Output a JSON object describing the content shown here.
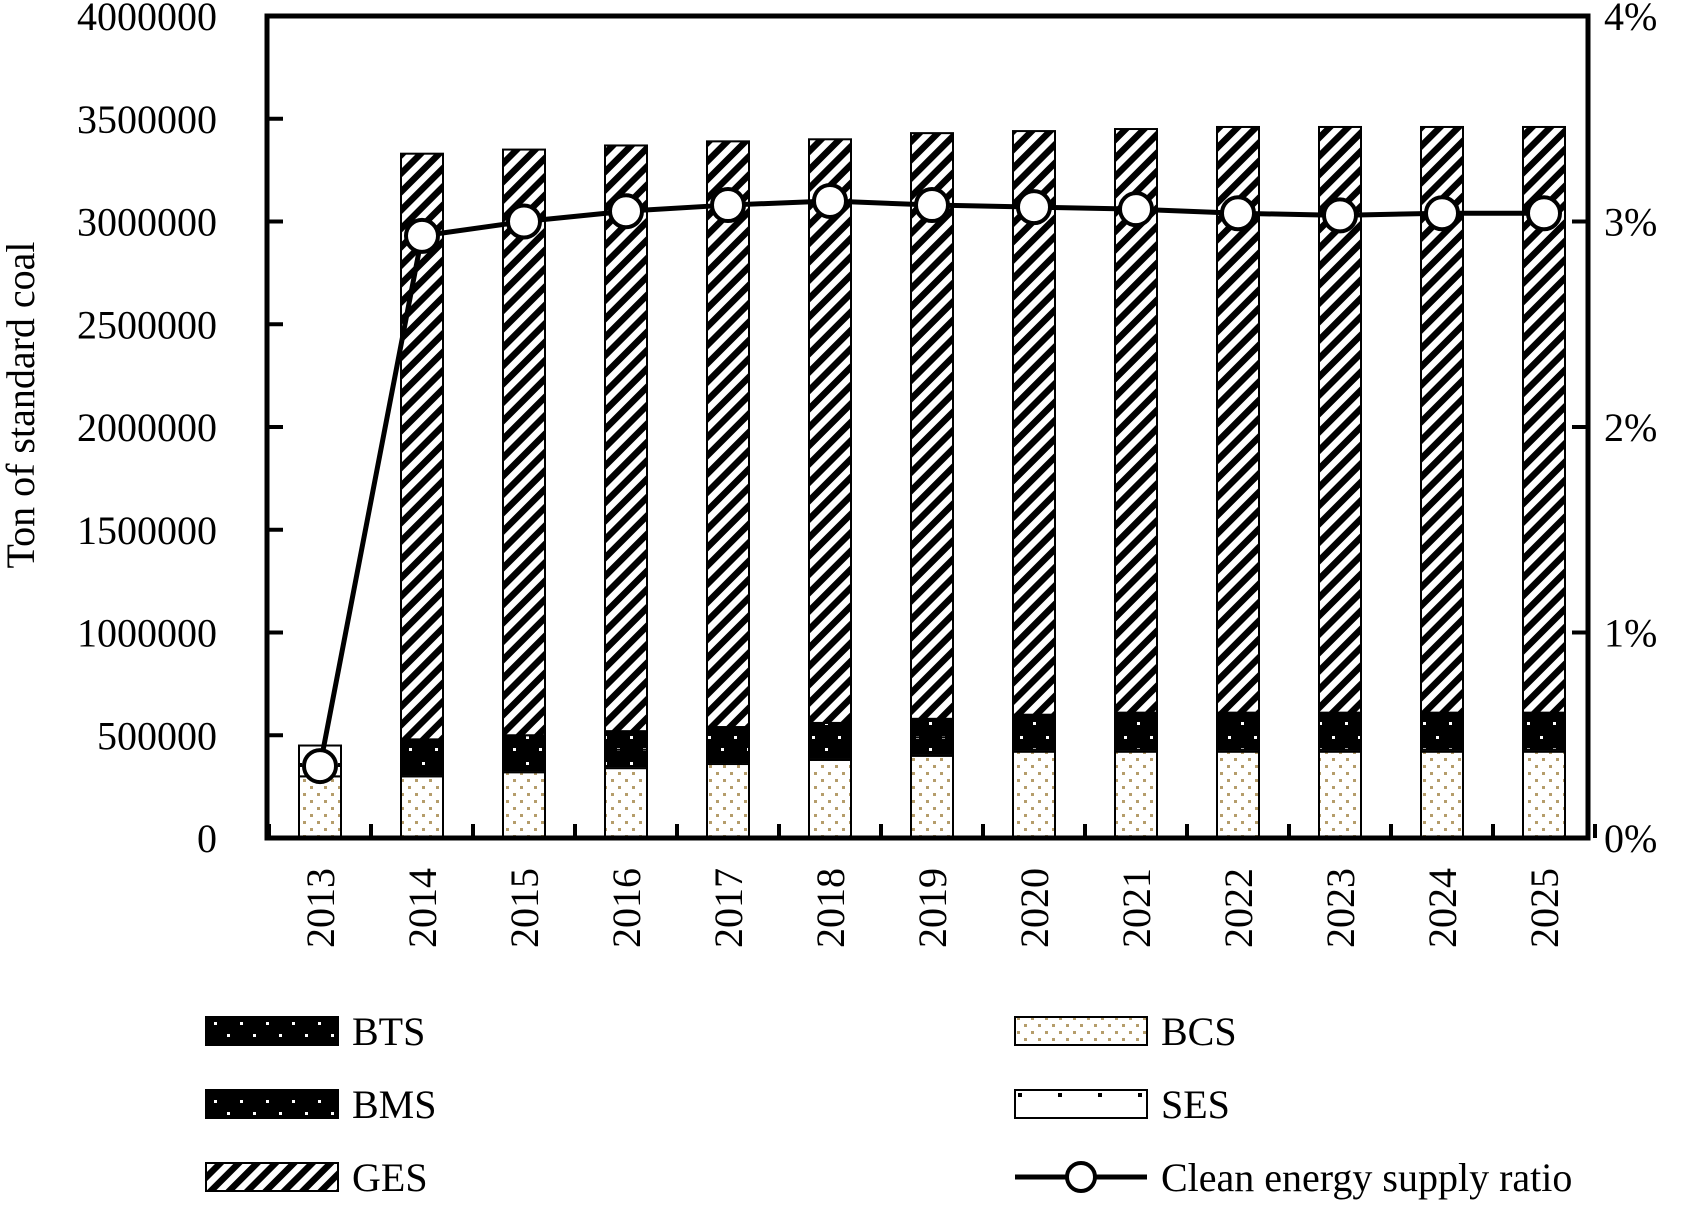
{
  "chart_data": {
    "type": "bar",
    "stacked": true,
    "title": "",
    "xlabel": "",
    "ylabel": "Ton of standard coal",
    "ylim": [
      0,
      4000000
    ],
    "y_ticks": [
      "0",
      "500000",
      "1000000",
      "1500000",
      "2000000",
      "2500000",
      "3000000",
      "3500000",
      "4000000"
    ],
    "y2lim": [
      0,
      4
    ],
    "y2_ticks": [
      "0%",
      "1%",
      "2%",
      "3%",
      "4%"
    ],
    "categories": [
      "2013",
      "2014",
      "2015",
      "2016",
      "2017",
      "2018",
      "2019",
      "2020",
      "2021",
      "2022",
      "2023",
      "2024",
      "2025"
    ],
    "series": [
      {
        "name": "BCS",
        "pattern": "dots-beige",
        "values": [
          300000,
          300000,
          320000,
          340000,
          360000,
          380000,
          400000,
          420000,
          420000,
          420000,
          420000,
          420000,
          420000
        ]
      },
      {
        "name": "SES",
        "pattern": "sparse-dots",
        "values": [
          150000,
          10000,
          10000,
          10000,
          10000,
          10000,
          10000,
          10000,
          10000,
          10000,
          10000,
          10000,
          10000
        ]
      },
      {
        "name": "BMS",
        "pattern": "black-dots",
        "values": [
          0,
          80000,
          80000,
          80000,
          80000,
          80000,
          80000,
          80000,
          80000,
          80000,
          80000,
          80000,
          80000
        ]
      },
      {
        "name": "BTS",
        "pattern": "black-dots",
        "values": [
          0,
          90000,
          90000,
          90000,
          90000,
          90000,
          90000,
          90000,
          100000,
          100000,
          100000,
          100000,
          100000
        ]
      },
      {
        "name": "GES",
        "pattern": "diagonal",
        "values": [
          0,
          2850000,
          2850000,
          2850000,
          2850000,
          2840000,
          2850000,
          2840000,
          2840000,
          2850000,
          2850000,
          2850000,
          2850000
        ]
      }
    ],
    "line_series": {
      "name": "Clean energy supply ratio",
      "axis": "right",
      "unit": "%",
      "values": [
        0.35,
        2.93,
        3.0,
        3.05,
        3.08,
        3.1,
        3.08,
        3.07,
        3.06,
        3.04,
        3.03,
        3.04,
        3.04
      ]
    },
    "legend": {
      "placement": "bottom",
      "items": [
        {
          "label": "BTS",
          "pattern": "black-dots"
        },
        {
          "label": "BCS",
          "pattern": "dots-beige"
        },
        {
          "label": "BMS",
          "pattern": "black-dots"
        },
        {
          "label": "SES",
          "pattern": "sparse-dots"
        },
        {
          "label": "GES",
          "pattern": "diagonal"
        },
        {
          "label": "Clean energy supply ratio",
          "pattern": "line-marker"
        }
      ]
    },
    "colors": {
      "ink": "#000000",
      "dots": "#b59d6b",
      "background": "#ffffff"
    },
    "grid": false
  }
}
